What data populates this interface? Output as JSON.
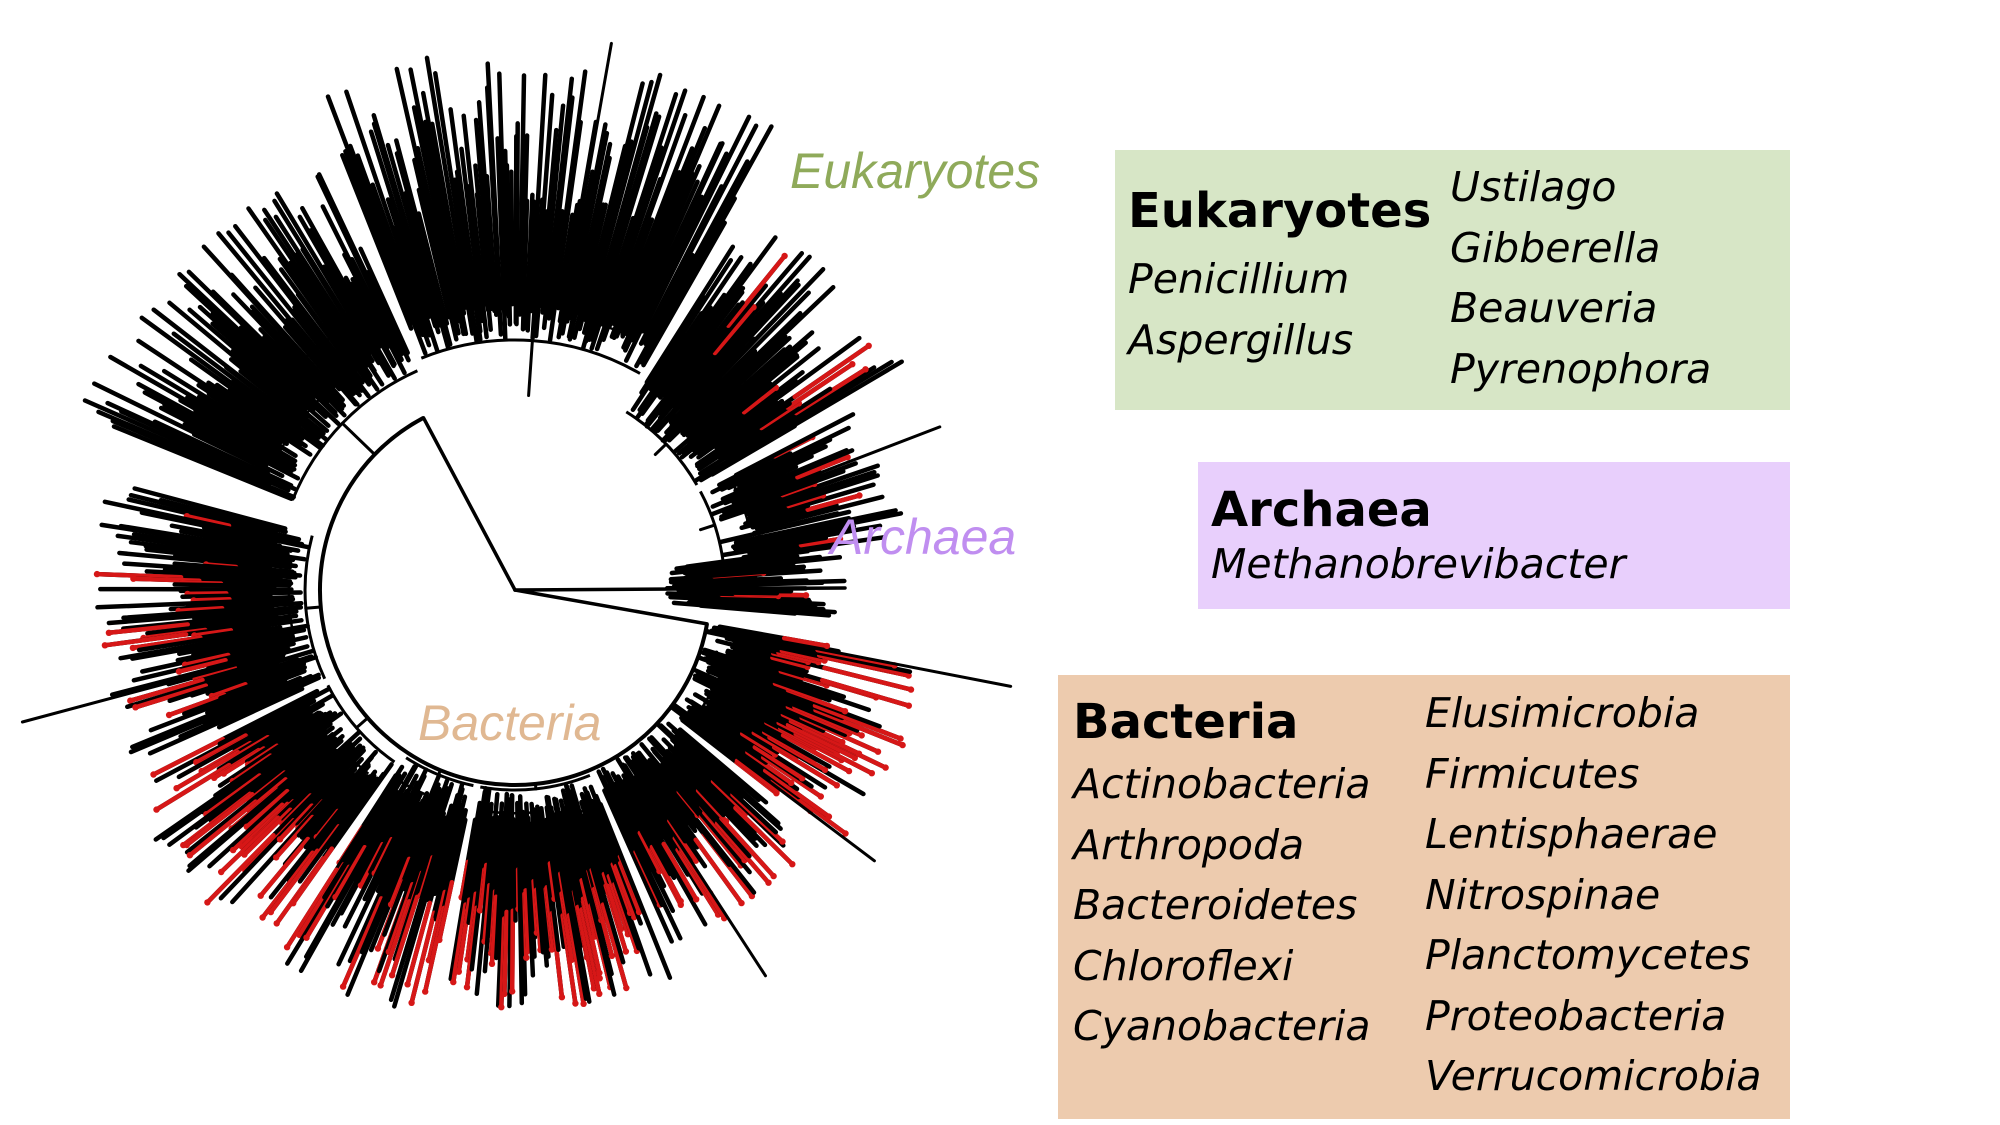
{
  "colors": {
    "eukaryotes_label": "#8faa5a",
    "archaea_label": "#c08ef0",
    "bacteria_label": "#e0b892",
    "eukaryotes_box": "#d7e6c6",
    "archaea_box": "#e8cffc",
    "bacteria_box": "#edcbae",
    "branch": "#000000",
    "highlight": "#d61717"
  },
  "tree_labels": {
    "eukaryotes": "Eukaryotes",
    "archaea": "Archaea",
    "bacteria": "Bacteria"
  },
  "legend": {
    "eukaryotes": {
      "title": "Eukaryotes",
      "left": [
        "Penicillium",
        "Aspergillus"
      ],
      "right": [
        "Ustilago",
        "Gibberella",
        "Beauveria",
        "Pyrenophora"
      ]
    },
    "archaea": {
      "title": "Archaea",
      "left": [
        "Methanobrevibacter"
      ]
    },
    "bacteria": {
      "title": "Bacteria",
      "left": [
        "Actinobacteria",
        "Arthropoda",
        "Bacteroidetes",
        "Chloroflexi",
        "Cyanobacteria"
      ],
      "right": [
        "Elusimicrobia",
        "Firmicutes",
        "Lentisphaerae",
        "Nitrospinae",
        "Planctomycetes",
        "Proteobacteria",
        "Verrucomicrobia"
      ]
    }
  }
}
